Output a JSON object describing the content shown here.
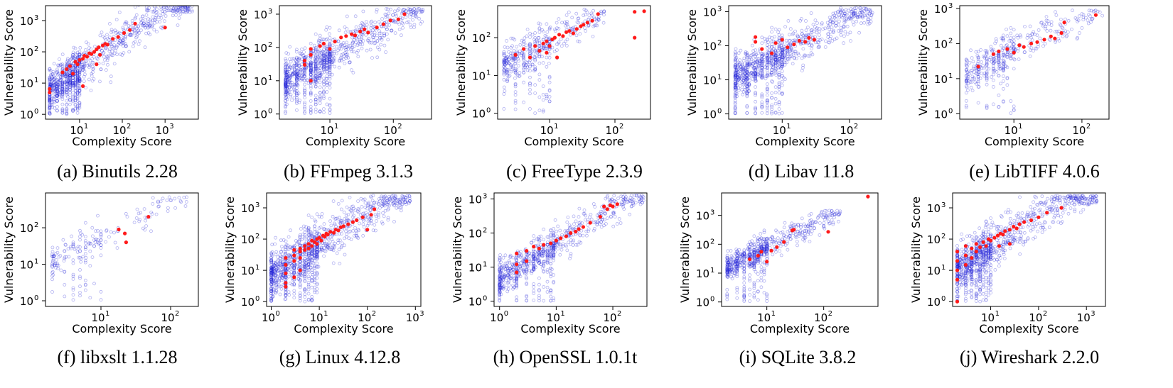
{
  "figure": {
    "common": {
      "xlabel": "Complexity Score",
      "ylabel": "Vulnerability Score",
      "xscale": "log",
      "yscale": "log",
      "background_color": "#1f1fd8",
      "highlight_color": "#ff1a1a"
    }
  },
  "chart_data": [
    {
      "type": "scatter",
      "caption": "(a) Binutils 2.28",
      "xlabel": "Complexity Score",
      "ylabel": "Vulnerability Score",
      "x_ticks": [
        "10^1",
        "10^2",
        "10^3"
      ],
      "y_ticks": [
        "10^0",
        "10^1",
        "10^2",
        "10^3"
      ],
      "xlim": [
        1.6,
        6000
      ],
      "ylim": [
        0.7,
        3000
      ],
      "cloud": {
        "xmin": 2,
        "xmax": 4500,
        "ymin": 1,
        "ymax": 3500,
        "slope": 0.98,
        "intercept": 0.45,
        "spread": 0.33,
        "count": 950
      },
      "highlighted": [
        [
          2,
          5
        ],
        [
          2,
          6.5
        ],
        [
          4,
          22
        ],
        [
          5,
          28
        ],
        [
          6,
          35
        ],
        [
          7,
          20
        ],
        [
          8,
          48
        ],
        [
          9,
          40
        ],
        [
          10,
          55
        ],
        [
          12,
          60
        ],
        [
          13,
          75
        ],
        [
          15,
          70
        ],
        [
          17,
          90
        ],
        [
          19,
          85
        ],
        [
          22,
          100
        ],
        [
          25,
          120
        ],
        [
          28,
          140
        ],
        [
          30,
          80
        ],
        [
          35,
          160
        ],
        [
          40,
          180
        ],
        [
          45,
          170
        ],
        [
          60,
          260
        ],
        [
          80,
          300
        ],
        [
          110,
          400
        ],
        [
          150,
          500
        ],
        [
          200,
          800
        ],
        [
          1000,
          600
        ],
        [
          25,
          40
        ],
        [
          12,
          8
        ]
      ],
      "max_points": [
        [
          3500,
          2200
        ],
        [
          1800,
          1500
        ],
        [
          2600,
          3000
        ]
      ]
    },
    {
      "type": "scatter",
      "caption": "(b) FFmpeg 3.1.3",
      "xlabel": "Complexity Score",
      "ylabel": "Vulnerability Score",
      "x_ticks": [
        "10^1",
        "10^2"
      ],
      "y_ticks": [
        "10^0",
        "10^1",
        "10^2",
        "10^3"
      ],
      "xlim": [
        1.6,
        400
      ],
      "ylim": [
        0.7,
        1800
      ],
      "cloud": {
        "xmin": 2,
        "xmax": 300,
        "ymin": 1,
        "ymax": 1500,
        "slope": 1.05,
        "intercept": 0.7,
        "spread": 0.32,
        "count": 950
      },
      "highlighted": [
        [
          4,
          40
        ],
        [
          5,
          60
        ],
        [
          5,
          90
        ],
        [
          7,
          110
        ],
        [
          8,
          130
        ],
        [
          10,
          90
        ],
        [
          12,
          150
        ],
        [
          15,
          200
        ],
        [
          18,
          220
        ],
        [
          22,
          250
        ],
        [
          25,
          230
        ],
        [
          30,
          300
        ],
        [
          35,
          350
        ],
        [
          40,
          280
        ],
        [
          55,
          400
        ],
        [
          70,
          500
        ],
        [
          90,
          650
        ],
        [
          120,
          700
        ],
        [
          150,
          1000
        ],
        [
          5,
          10
        ],
        [
          4,
          30
        ]
      ],
      "max_points": []
    },
    {
      "type": "scatter",
      "caption": "(c) FreeType 2.3.9",
      "xlabel": "Complexity Score",
      "ylabel": "Vulnerability Score",
      "x_ticks": [
        "10^1",
        "10^2"
      ],
      "y_ticks": [
        "10^0",
        "10^1",
        "10^2"
      ],
      "xlim": [
        1.6,
        350
      ],
      "ylim": [
        0.7,
        700
      ],
      "cloud": {
        "xmin": 2,
        "xmax": 70,
        "ymin": 1,
        "ymax": 600,
        "slope": 1.0,
        "intercept": 0.95,
        "spread": 0.26,
        "count": 420
      },
      "highlighted": [
        [
          3,
          35
        ],
        [
          4,
          50
        ],
        [
          5,
          30
        ],
        [
          6,
          60
        ],
        [
          7,
          45
        ],
        [
          8,
          70
        ],
        [
          9,
          80
        ],
        [
          10,
          60
        ],
        [
          11,
          90
        ],
        [
          12,
          100
        ],
        [
          14,
          120
        ],
        [
          16,
          110
        ],
        [
          18,
          140
        ],
        [
          20,
          150
        ],
        [
          23,
          130
        ],
        [
          26,
          170
        ],
        [
          30,
          200
        ],
        [
          33,
          220
        ],
        [
          38,
          250
        ],
        [
          45,
          280
        ],
        [
          55,
          420
        ],
        [
          200,
          480
        ],
        [
          280,
          500
        ],
        [
          200,
          100
        ],
        [
          13,
          30
        ],
        [
          9,
          40
        ]
      ],
      "max_points": []
    },
    {
      "type": "scatter",
      "caption": "(d) Libav 11.8",
      "xlabel": "Complexity Score",
      "ylabel": "Vulnerability Score",
      "x_ticks": [
        "10^1",
        "10^2"
      ],
      "y_ticks": [
        "10^0",
        "10^1",
        "10^2",
        "10^3"
      ],
      "xlim": [
        1.6,
        300
      ],
      "ylim": [
        0.7,
        1500
      ],
      "cloud": {
        "xmin": 2,
        "xmax": 220,
        "ymin": 1,
        "ymax": 1300,
        "slope": 1.05,
        "intercept": 0.75,
        "spread": 0.3,
        "count": 950
      },
      "highlighted": [
        [
          4,
          180
        ],
        [
          4,
          130
        ],
        [
          5,
          80
        ],
        [
          7,
          60
        ],
        [
          8,
          120
        ],
        [
          10,
          150
        ],
        [
          12,
          90
        ],
        [
          15,
          110
        ],
        [
          18,
          140
        ],
        [
          22,
          130
        ],
        [
          25,
          170
        ],
        [
          30,
          150
        ]
      ],
      "max_points": []
    },
    {
      "type": "scatter",
      "caption": "(e) LibTIFF 4.0.6",
      "xlabel": "Complexity Score",
      "ylabel": "Vulnerability Score",
      "x_ticks": [
        "10^1",
        "10^2"
      ],
      "y_ticks": [
        "10^0",
        "10^1",
        "10^2",
        "10^3"
      ],
      "xlim": [
        1.6,
        250
      ],
      "ylim": [
        0.7,
        1200
      ],
      "cloud": {
        "xmin": 2,
        "xmax": 200,
        "ymin": 1,
        "ymax": 900,
        "slope": 0.98,
        "intercept": 0.85,
        "spread": 0.26,
        "count": 400
      },
      "highlighted": [
        [
          3,
          22
        ],
        [
          5,
          50
        ],
        [
          6,
          60
        ],
        [
          8,
          70
        ],
        [
          10,
          55
        ],
        [
          12,
          90
        ],
        [
          14,
          80
        ],
        [
          18,
          100
        ],
        [
          22,
          110
        ],
        [
          28,
          130
        ],
        [
          35,
          160
        ],
        [
          40,
          140
        ],
        [
          50,
          200
        ],
        [
          55,
          400
        ],
        [
          160,
          650
        ]
      ],
      "max_points": []
    },
    {
      "type": "scatter",
      "caption": "(f) libxslt 1.1.28",
      "xlabel": "Complexity Score",
      "ylabel": "Vulnerability Score",
      "x_ticks": [
        "10^1",
        "10^2"
      ],
      "y_ticks": [
        "10^0",
        "10^1",
        "10^2"
      ],
      "xlim": [
        1.6,
        250
      ],
      "ylim": [
        0.7,
        900
      ],
      "cloud": {
        "xmin": 2,
        "xmax": 180,
        "ymin": 1,
        "ymax": 700,
        "slope": 1.0,
        "intercept": 0.75,
        "spread": 0.22,
        "count": 200
      },
      "highlighted": [
        [
          18,
          90
        ],
        [
          22,
          70
        ],
        [
          23,
          40
        ],
        [
          48,
          200
        ]
      ],
      "max_points": []
    },
    {
      "type": "scatter",
      "caption": "(g) Linux 4.12.8",
      "xlabel": "Complexity Score",
      "ylabel": "Vulnerability Score",
      "x_ticks": [
        "10^0",
        "10^1",
        "10^2",
        "10^3"
      ],
      "y_ticks": [
        "10^0",
        "10^1",
        "10^2",
        "10^3"
      ],
      "xlim": [
        0.8,
        1300
      ],
      "ylim": [
        0.7,
        3000
      ],
      "cloud": {
        "xmin": 1,
        "xmax": 800,
        "ymin": 1,
        "ymax": 2500,
        "slope": 1.0,
        "intercept": 0.85,
        "spread": 0.38,
        "count": 1100
      },
      "highlighted": [
        [
          2,
          4
        ],
        [
          2,
          8
        ],
        [
          2,
          15
        ],
        [
          2,
          25
        ],
        [
          3,
          20
        ],
        [
          3,
          30
        ],
        [
          3,
          45
        ],
        [
          4,
          25
        ],
        [
          4,
          40
        ],
        [
          4,
          50
        ],
        [
          5,
          45
        ],
        [
          5,
          60
        ],
        [
          6,
          50
        ],
        [
          6,
          70
        ],
        [
          7,
          60
        ],
        [
          7,
          90
        ],
        [
          8,
          80
        ],
        [
          9,
          70
        ],
        [
          9,
          100
        ],
        [
          10,
          110
        ],
        [
          11,
          90
        ],
        [
          12,
          130
        ],
        [
          13,
          120
        ],
        [
          14,
          150
        ],
        [
          15,
          140
        ],
        [
          17,
          170
        ],
        [
          20,
          160
        ],
        [
          22,
          200
        ],
        [
          25,
          190
        ],
        [
          28,
          240
        ],
        [
          32,
          260
        ],
        [
          40,
          300
        ],
        [
          50,
          350
        ],
        [
          60,
          400
        ],
        [
          80,
          500
        ],
        [
          100,
          200
        ],
        [
          140,
          900
        ],
        [
          120,
          600
        ],
        [
          2,
          3
        ],
        [
          3,
          6
        ],
        [
          4,
          10
        ]
      ],
      "max_points": []
    },
    {
      "type": "scatter",
      "caption": "(h) OpenSSL 1.0.1t",
      "xlabel": "Complexity Score",
      "ylabel": "Vulnerability Score",
      "x_ticks": [
        "10^0",
        "10^1",
        "10^2"
      ],
      "y_ticks": [
        "10^0",
        "10^1",
        "10^2",
        "10^3"
      ],
      "xlim": [
        0.8,
        400
      ],
      "ylim": [
        0.7,
        1500
      ],
      "cloud": {
        "xmin": 1,
        "xmax": 350,
        "ymin": 1,
        "ymax": 1300,
        "slope": 1.05,
        "intercept": 0.65,
        "spread": 0.25,
        "count": 750
      },
      "highlighted": [
        [
          2,
          7
        ],
        [
          2,
          12
        ],
        [
          2,
          25
        ],
        [
          3,
          15
        ],
        [
          3,
          30
        ],
        [
          4,
          40
        ],
        [
          5,
          35
        ],
        [
          6,
          45
        ],
        [
          8,
          50
        ],
        [
          10,
          60
        ],
        [
          12,
          70
        ],
        [
          15,
          80
        ],
        [
          18,
          100
        ],
        [
          22,
          110
        ],
        [
          25,
          130
        ],
        [
          30,
          150
        ],
        [
          40,
          200
        ],
        [
          60,
          300
        ],
        [
          80,
          500
        ],
        [
          100,
          600
        ],
        [
          90,
          650
        ],
        [
          120,
          700
        ],
        [
          70,
          600
        ]
      ],
      "max_points": []
    },
    {
      "type": "scatter",
      "caption": "(i) SQLite 3.8.2",
      "xlabel": "Complexity Score",
      "ylabel": "Vulnerability Score",
      "x_ticks": [
        "10^1",
        "10^2"
      ],
      "y_ticks": [
        "10^0",
        "10^1",
        "10^2",
        "10^3"
      ],
      "xlim": [
        1.6,
        900
      ],
      "ylim": [
        0.7,
        6000
      ],
      "cloud": {
        "xmin": 2,
        "xmax": 200,
        "ymin": 1,
        "ymax": 1500,
        "slope": 1.0,
        "intercept": 0.9,
        "spread": 0.22,
        "count": 650
      },
      "highlighted": [
        [
          5,
          30
        ],
        [
          7,
          40
        ],
        [
          8,
          55
        ],
        [
          10,
          25
        ],
        [
          12,
          60
        ],
        [
          15,
          80
        ],
        [
          20,
          120
        ],
        [
          28,
          300
        ],
        [
          30,
          320
        ],
        [
          120,
          270
        ],
        [
          600,
          4500
        ]
      ],
      "max_points": []
    },
    {
      "type": "scatter",
      "caption": "(j) Wireshark 2.2.0",
      "xlabel": "Complexity Score",
      "ylabel": "Vulnerability Score",
      "x_ticks": [
        "10^1",
        "10^2",
        "10^3"
      ],
      "y_ticks": [
        "10^0",
        "10^1",
        "10^2",
        "10^3"
      ],
      "xlim": [
        1.6,
        2500
      ],
      "ylim": [
        0.7,
        3000
      ],
      "cloud": {
        "xmin": 2,
        "xmax": 1700,
        "ymin": 1,
        "ymax": 2500,
        "slope": 1.0,
        "intercept": 0.75,
        "spread": 0.35,
        "count": 1000
      },
      "highlighted": [
        [
          2,
          1
        ],
        [
          2,
          5
        ],
        [
          2,
          10
        ],
        [
          2,
          20
        ],
        [
          2,
          40
        ],
        [
          3,
          15
        ],
        [
          3,
          30
        ],
        [
          3,
          60
        ],
        [
          4,
          25
        ],
        [
          4,
          50
        ],
        [
          5,
          40
        ],
        [
          5,
          70
        ],
        [
          6,
          55
        ],
        [
          7,
          80
        ],
        [
          8,
          60
        ],
        [
          9,
          100
        ],
        [
          10,
          90
        ],
        [
          12,
          110
        ],
        [
          14,
          130
        ],
        [
          16,
          150
        ],
        [
          18,
          140
        ],
        [
          20,
          180
        ],
        [
          25,
          200
        ],
        [
          30,
          250
        ],
        [
          35,
          220
        ],
        [
          40,
          300
        ],
        [
          50,
          350
        ],
        [
          70,
          400
        ],
        [
          100,
          500
        ],
        [
          150,
          700
        ],
        [
          300,
          1000
        ],
        [
          15,
          60
        ],
        [
          25,
          70
        ]
      ],
      "max_points": []
    }
  ]
}
